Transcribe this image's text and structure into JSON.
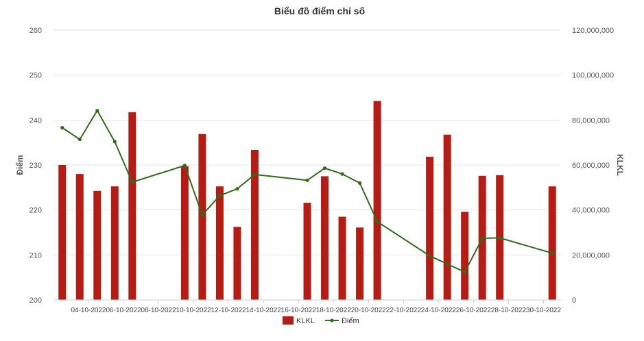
{
  "chart_data": {
    "type": "bar",
    "title": "Biểu đồ điểm chỉ số",
    "ylabel": "Điểm",
    "y2label": "KLKL",
    "ylim": [
      200,
      260
    ],
    "y2lim": [
      0,
      120000000
    ],
    "yticks": [
      "200",
      "210",
      "220",
      "230",
      "240",
      "250",
      "260"
    ],
    "y2ticks": [
      "0",
      "20,000,000",
      "40,000,000",
      "60,000,000",
      "80,000,000",
      "100,000,000",
      "120,000,000"
    ],
    "xticklabels": [
      "04-10-2022",
      "06-10-2022",
      "08-10-2022",
      "10-10-2022",
      "12-10-2022",
      "14-10-2022",
      "16-10-2022",
      "18-10-2022",
      "20-10-2022",
      "22-10-2022",
      "24-10-2022",
      "26-10-2022",
      "28-10-2022",
      "30-10-2022"
    ],
    "x_start": "2022-10-03",
    "x_end": "2022-10-31",
    "legend_position": "bottom",
    "colors": {
      "bar": "#b71c14",
      "line": "#2e6b1a"
    },
    "series": [
      {
        "name": "KLKL",
        "type": "bar",
        "axis": "right",
        "x": [
          "2022-10-03",
          "2022-10-04",
          "2022-10-05",
          "2022-10-06",
          "2022-10-07",
          "2022-10-10",
          "2022-10-11",
          "2022-10-12",
          "2022-10-13",
          "2022-10-14",
          "2022-10-17",
          "2022-10-18",
          "2022-10-19",
          "2022-10-20",
          "2022-10-21",
          "2022-10-24",
          "2022-10-25",
          "2022-10-26",
          "2022-10-27",
          "2022-10-28",
          "2022-10-31"
        ],
        "values": [
          60000000,
          56000000,
          48500000,
          50500000,
          83500000,
          59500000,
          73800000,
          50500000,
          32500000,
          66700000,
          43200000,
          55000000,
          37000000,
          32200000,
          88500000,
          63700000,
          73500000,
          39200000,
          55200000,
          55500000,
          50500000
        ]
      },
      {
        "name": "Điểm",
        "type": "line",
        "axis": "left",
        "x": [
          "2022-10-03",
          "2022-10-04",
          "2022-10-05",
          "2022-10-06",
          "2022-10-07",
          "2022-10-10",
          "2022-10-11",
          "2022-10-12",
          "2022-10-13",
          "2022-10-14",
          "2022-10-17",
          "2022-10-18",
          "2022-10-19",
          "2022-10-20",
          "2022-10-21",
          "2022-10-24",
          "2022-10-25",
          "2022-10-26",
          "2022-10-27",
          "2022-10-28",
          "2022-10-31"
        ],
        "values": [
          238.3,
          235.7,
          242.1,
          235.2,
          226.2,
          229.9,
          218.9,
          223.2,
          224.7,
          227.9,
          226.6,
          229.3,
          228.0,
          226.0,
          217.4,
          209.8,
          208.0,
          206.2,
          213.7,
          213.8,
          210.4
        ]
      }
    ]
  }
}
